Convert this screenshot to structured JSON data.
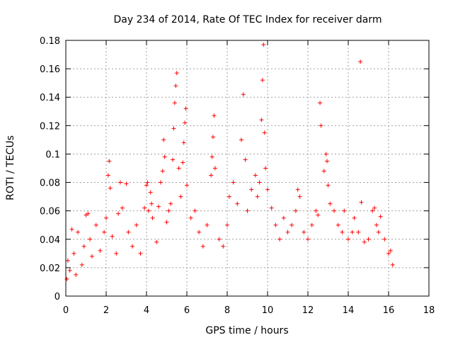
{
  "chart_data": {
    "type": "scatter",
    "title": "Day 234 of 2014, Rate Of TEC Index for receiver darm",
    "xlabel": "GPS time / hours",
    "ylabel": "ROTI / TECUs",
    "xlim": [
      0,
      18
    ],
    "ylim": [
      0,
      0.18
    ],
    "xticks": [
      0,
      2,
      4,
      6,
      8,
      10,
      12,
      14,
      16,
      18
    ],
    "xtick_labels": [
      "0",
      "2",
      "4",
      "6",
      "8",
      "10",
      "12",
      "14",
      "16",
      "18"
    ],
    "yticks": [
      0,
      0.02,
      0.04,
      0.06,
      0.08,
      0.1,
      0.12,
      0.14,
      0.16,
      0.18
    ],
    "ytick_labels": [
      "0",
      "0.02",
      "0.04",
      "0.06",
      "0.08",
      "0.1",
      "0.12",
      "0.14",
      "0.16",
      "0.18"
    ],
    "grid": true,
    "marker": "+",
    "marker_color": "#ff0000",
    "series": [
      {
        "name": "ROTI",
        "points": [
          [
            0.05,
            0.012
          ],
          [
            0.1,
            0.025
          ],
          [
            0.2,
            0.018
          ],
          [
            0.3,
            0.047
          ],
          [
            0.4,
            0.03
          ],
          [
            0.5,
            0.015
          ],
          [
            0.6,
            0.045
          ],
          [
            0.8,
            0.022
          ],
          [
            0.9,
            0.035
          ],
          [
            1.0,
            0.057
          ],
          [
            1.1,
            0.058
          ],
          [
            1.2,
            0.04
          ],
          [
            1.3,
            0.028
          ],
          [
            1.5,
            0.05
          ],
          [
            1.7,
            0.032
          ],
          [
            1.9,
            0.045
          ],
          [
            2.0,
            0.055
          ],
          [
            2.1,
            0.085
          ],
          [
            2.15,
            0.095
          ],
          [
            2.2,
            0.076
          ],
          [
            2.3,
            0.042
          ],
          [
            2.5,
            0.03
          ],
          [
            2.6,
            0.058
          ],
          [
            2.7,
            0.08
          ],
          [
            2.8,
            0.062
          ],
          [
            3.0,
            0.079
          ],
          [
            3.1,
            0.045
          ],
          [
            3.3,
            0.035
          ],
          [
            3.5,
            0.05
          ],
          [
            3.7,
            0.03
          ],
          [
            3.9,
            0.062
          ],
          [
            4.0,
            0.078
          ],
          [
            4.05,
            0.08
          ],
          [
            4.1,
            0.06
          ],
          [
            4.2,
            0.073
          ],
          [
            4.25,
            0.065
          ],
          [
            4.3,
            0.055
          ],
          [
            4.5,
            0.038
          ],
          [
            4.6,
            0.063
          ],
          [
            4.7,
            0.08
          ],
          [
            4.8,
            0.088
          ],
          [
            4.85,
            0.11
          ],
          [
            4.9,
            0.098
          ],
          [
            5.0,
            0.052
          ],
          [
            5.1,
            0.06
          ],
          [
            5.2,
            0.065
          ],
          [
            5.3,
            0.096
          ],
          [
            5.35,
            0.118
          ],
          [
            5.4,
            0.136
          ],
          [
            5.45,
            0.148
          ],
          [
            5.5,
            0.157
          ],
          [
            5.6,
            0.09
          ],
          [
            5.7,
            0.07
          ],
          [
            5.8,
            0.094
          ],
          [
            5.85,
            0.108
          ],
          [
            5.9,
            0.122
          ],
          [
            5.95,
            0.132
          ],
          [
            6.0,
            0.078
          ],
          [
            6.2,
            0.055
          ],
          [
            6.4,
            0.06
          ],
          [
            6.6,
            0.045
          ],
          [
            6.8,
            0.035
          ],
          [
            7.0,
            0.05
          ],
          [
            7.2,
            0.085
          ],
          [
            7.25,
            0.098
          ],
          [
            7.3,
            0.112
          ],
          [
            7.35,
            0.127
          ],
          [
            7.4,
            0.09
          ],
          [
            7.6,
            0.04
          ],
          [
            7.8,
            0.035
          ],
          [
            8.0,
            0.05
          ],
          [
            8.1,
            0.07
          ],
          [
            8.3,
            0.08
          ],
          [
            8.5,
            0.065
          ],
          [
            8.7,
            0.11
          ],
          [
            8.8,
            0.142
          ],
          [
            8.9,
            0.096
          ],
          [
            9.0,
            0.06
          ],
          [
            9.2,
            0.075
          ],
          [
            9.4,
            0.085
          ],
          [
            9.5,
            0.07
          ],
          [
            9.6,
            0.08
          ],
          [
            9.7,
            0.124
          ],
          [
            9.75,
            0.152
          ],
          [
            9.8,
            0.177
          ],
          [
            9.85,
            0.115
          ],
          [
            9.9,
            0.09
          ],
          [
            10.0,
            0.075
          ],
          [
            10.2,
            0.062
          ],
          [
            10.4,
            0.05
          ],
          [
            10.6,
            0.04
          ],
          [
            10.8,
            0.055
          ],
          [
            11.0,
            0.045
          ],
          [
            11.2,
            0.05
          ],
          [
            11.4,
            0.06
          ],
          [
            11.5,
            0.075
          ],
          [
            11.6,
            0.07
          ],
          [
            11.8,
            0.045
          ],
          [
            12.0,
            0.04
          ],
          [
            12.2,
            0.05
          ],
          [
            12.4,
            0.06
          ],
          [
            12.5,
            0.057
          ],
          [
            12.6,
            0.136
          ],
          [
            12.65,
            0.12
          ],
          [
            12.8,
            0.088
          ],
          [
            12.9,
            0.1
          ],
          [
            12.95,
            0.095
          ],
          [
            13.0,
            0.078
          ],
          [
            13.1,
            0.065
          ],
          [
            13.3,
            0.06
          ],
          [
            13.5,
            0.05
          ],
          [
            13.7,
            0.045
          ],
          [
            13.8,
            0.06
          ],
          [
            14.0,
            0.04
          ],
          [
            14.2,
            0.045
          ],
          [
            14.3,
            0.055
          ],
          [
            14.5,
            0.045
          ],
          [
            14.6,
            0.165
          ],
          [
            14.65,
            0.066
          ],
          [
            14.8,
            0.038
          ],
          [
            15.0,
            0.04
          ],
          [
            15.2,
            0.06
          ],
          [
            15.3,
            0.062
          ],
          [
            15.4,
            0.05
          ],
          [
            15.5,
            0.045
          ],
          [
            15.6,
            0.056
          ],
          [
            15.8,
            0.04
          ],
          [
            16.0,
            0.03
          ],
          [
            16.1,
            0.032
          ],
          [
            16.2,
            0.022
          ]
        ]
      }
    ]
  }
}
